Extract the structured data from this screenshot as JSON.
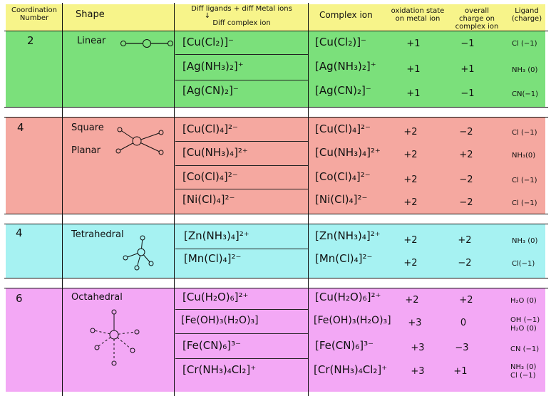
{
  "headers": {
    "coordination_number": "Coordination Number",
    "shape": "Shape",
    "diff_ligands": "Diff ligands + diff Metal ions",
    "arrow": "↓",
    "diff_complex_ion": "Diff complex ion",
    "complex_ion": "Complex ion",
    "oxidation_state": "oxidation state on metal ion",
    "overall_charge": "overall charge on complex ion",
    "ligand_charge": "Ligand (charge)"
  },
  "groups": [
    {
      "number": "2",
      "shape": "Linear",
      "color": "#7be07b",
      "rows": [
        {
          "ion": "[Cu(Cl₂)]⁻",
          "complex": "[Cu(Cl₂)]⁻",
          "ox": "+1",
          "charge": "−1",
          "ligand": "Cl (−1)"
        },
        {
          "ion": "[Ag(NH₃)₂]⁺",
          "complex": "[Ag(NH₃)₂]⁺",
          "ox": "+1",
          "charge": "+1",
          "ligand": "NH₃ (0)"
        },
        {
          "ion": "[Ag(CN)₂]⁻",
          "complex": "[Ag(CN)₂]⁻",
          "ox": "+1",
          "charge": "−1",
          "ligand": "CN(−1)"
        }
      ]
    },
    {
      "number": "4",
      "shape": "Square Planar",
      "shape_line1": "Square",
      "shape_line2": "Planar",
      "color": "#f5a8a0",
      "rows": [
        {
          "ion": "[Cu(Cl)₄]²⁻",
          "complex": "[Cu(Cl)₄]²⁻",
          "ox": "+2",
          "charge": "−2",
          "ligand": "Cl (−1)"
        },
        {
          "ion": "[Cu(NH₃)₄]²⁺",
          "complex": "[Cu(NH₃)₄]²⁺",
          "ox": "+2",
          "charge": "+2",
          "ligand": "NH₃(0)"
        },
        {
          "ion": "[Co(Cl)₄]²⁻",
          "complex": "[Co(Cl)₄]²⁻",
          "ox": "+2",
          "charge": "−2",
          "ligand": "Cl (−1)"
        },
        {
          "ion": "[Ni(Cl)₄]²⁻",
          "complex": "[Ni(Cl)₄]²⁻",
          "ox": "+2",
          "charge": "−2",
          "ligand": "Cl (−1)"
        }
      ]
    },
    {
      "number": "4",
      "shape": "Tetrahedral",
      "color": "#a6f2f2",
      "rows": [
        {
          "ion": "[Zn(NH₃)₄]²⁺",
          "complex": "[Zn(NH₃)₄]²⁺",
          "ox": "+2",
          "charge": "+2",
          "ligand": "NH₃ (0)"
        },
        {
          "ion": "[Mn(Cl)₄]²⁻",
          "complex": "[Mn(Cl)₄]²⁻",
          "ox": "+2",
          "charge": "−2",
          "ligand": "Cl(−1)"
        }
      ]
    },
    {
      "number": "6",
      "shape": "Octahedral",
      "color": "#f3a8f5",
      "rows": [
        {
          "ion": "[Cu(H₂O)₆]²⁺",
          "complex": "[Cu(H₂O)₆]²⁺",
          "ox": "+2",
          "charge": "+2",
          "ligand": "H₂O (0)"
        },
        {
          "ion": "[Fe(OH)₃(H₂O)₃]",
          "complex": "[Fe(OH)₃(H₂O)₃]",
          "ox": "+3",
          "charge": "0",
          "ligand": "OH (−1)",
          "ligand2": "H₂O (0)"
        },
        {
          "ion": "[Fe(CN)₆]³⁻",
          "complex": "[Fe(CN)₆]³⁻",
          "ox": "+3",
          "charge": "−3",
          "ligand": "CN (−1)"
        },
        {
          "ion": "[Cr(NH₃)₄Cl₂]⁺",
          "complex": "[Cr(NH₃)₄Cl₂]⁺",
          "ox": "+3",
          "charge": "+1",
          "ligand": "NH₃ (0)",
          "ligand2": "Cl (−1)"
        }
      ]
    }
  ],
  "colors": {
    "header": "#f7f48a",
    "ink": "#111111"
  }
}
